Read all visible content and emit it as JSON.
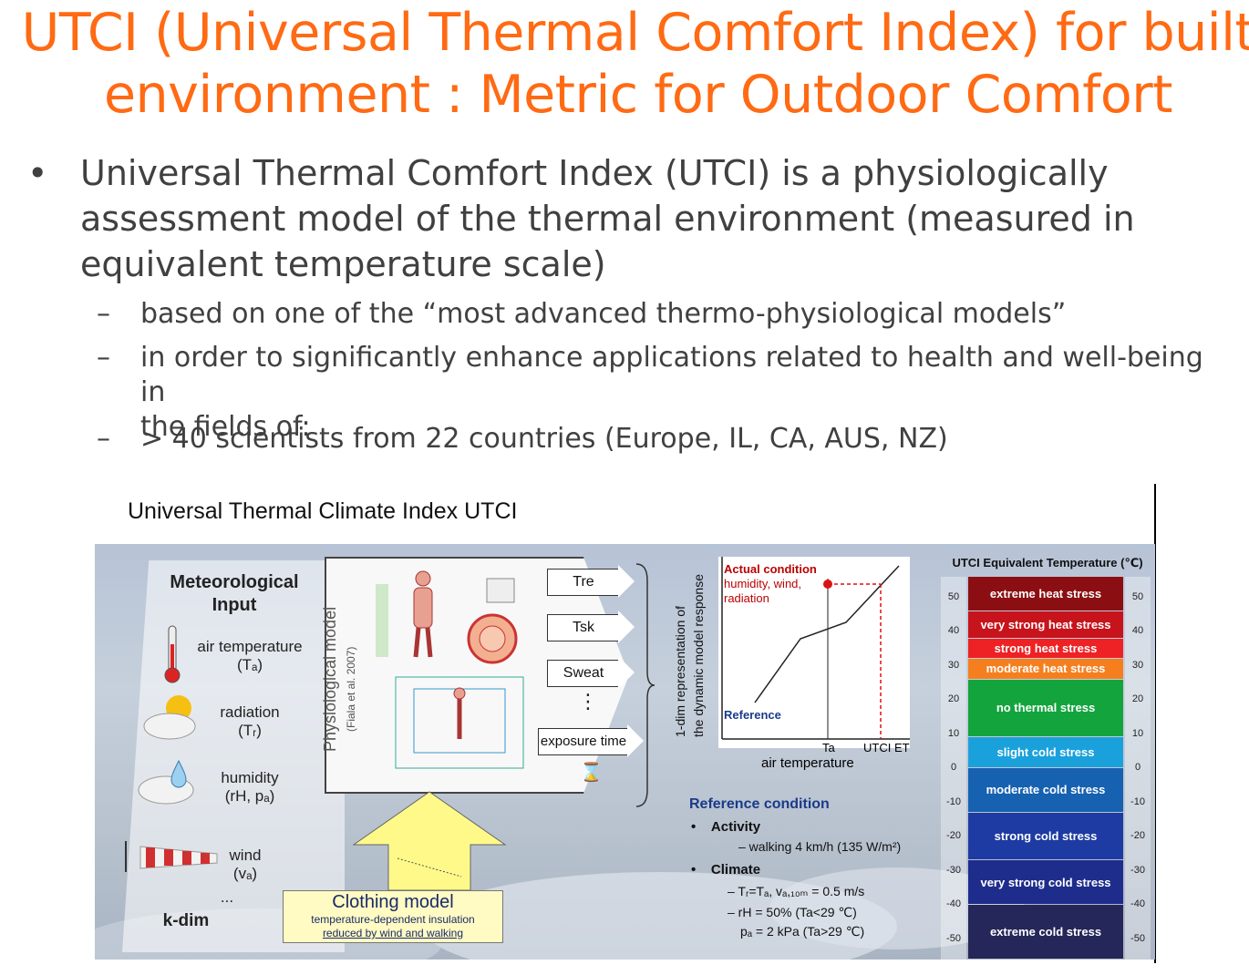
{
  "title": {
    "line1": "UTCI (Universal Thermal Comfort Index) for built",
    "line2": "environment : Metric for Outdoor Comfort"
  },
  "bullets": {
    "main": {
      "marker": "•",
      "line1": "Universal Thermal Comfort Index (UTCI) is a physiologically",
      "line2": "assessment model of the thermal environment (measured in",
      "line3": "equivalent temperature scale)"
    },
    "sub1": {
      "marker": "–",
      "text": "based on one of the “most advanced thermo-physiological models”"
    },
    "sub2": {
      "marker": "–",
      "line1": "in order to significantly enhance applications related to health and well-being in",
      "line2": "the fields of:"
    },
    "sub3": {
      "marker": "–",
      "text": "> 40 scientists from 22 countries (Europe, IL, CA, AUS, NZ)"
    }
  },
  "figure": {
    "title": "Universal Thermal Climate Index UTCI",
    "meteorological": {
      "title_line1": "Meteorological",
      "title_line2": "Input",
      "air_temperature": "air temperature",
      "air_temperature_sym": "(Tₐ)",
      "radiation": "radiation",
      "radiation_sym": "(Tᵣ)",
      "humidity": "humidity",
      "humidity_sym": "(rH, pₐ)",
      "wind": "wind",
      "wind_sym": "(vₐ)",
      "ellipsis": "...",
      "kdim": "k-dim"
    },
    "physiological": {
      "label": "Physiological model",
      "citation": "(Fiala et al. 2007)"
    },
    "outputs": [
      "Tre",
      "Tsk",
      "Sweat"
    ],
    "outputs_more": "⋮",
    "exposure_time": "exposure time",
    "hourglass": "⌛",
    "clothing": {
      "title": "Clothing model",
      "line1": "temperature-dependent insulation",
      "line2": "reduced by wind and walking"
    },
    "vertical_label_line1": "1-dim representation of",
    "vertical_label_line2": "the dynamic model response",
    "mini_chart": {
      "actual_title": "Actual condition",
      "actual_line1": "humidity, wind,",
      "actual_line2": "radiation",
      "reference": "Reference",
      "ta": "Ta",
      "utci_et": "UTCI ET",
      "xlabel": "air temperature"
    },
    "reference_condition": {
      "title": "Reference condition",
      "activity": "Activity",
      "activity_detail": "– walking 4 km/h (135 W/m²)",
      "climate": "Climate",
      "climate1": "– Tᵣ=Tₐ, vₐ,₁₀ₘ = 0.5 m/s",
      "climate2": "– rH = 50%  (Ta<29 ℃)",
      "climate3": "pₐ = 2 kPa (Ta>29 ℃)"
    },
    "scale": {
      "title": "UTCI Equivalent Temperature (℃)",
      "ticks": [
        "50",
        "40",
        "30",
        "20",
        "10",
        "0",
        "-10",
        "-20",
        "-30",
        "-40",
        "-50"
      ],
      "categories": [
        {
          "label": "extreme heat stress",
          "color": "#8b0f12"
        },
        {
          "label": "very strong heat stress",
          "color": "#c7131b"
        },
        {
          "label": "strong heat stress",
          "color": "#ee2124"
        },
        {
          "label": "moderate heat stress",
          "color": "#f57f1f"
        },
        {
          "label": "no thermal stress",
          "color": "#13a43e"
        },
        {
          "label": "slight cold stress",
          "color": "#1aa1dc"
        },
        {
          "label": "moderate cold stress",
          "color": "#1761b1"
        },
        {
          "label": "strong cold stress",
          "color": "#1d3ba2"
        },
        {
          "label": "very strong cold stress",
          "color": "#1e2d8b"
        },
        {
          "label": "extreme cold stress",
          "color": "#252659"
        }
      ]
    }
  }
}
